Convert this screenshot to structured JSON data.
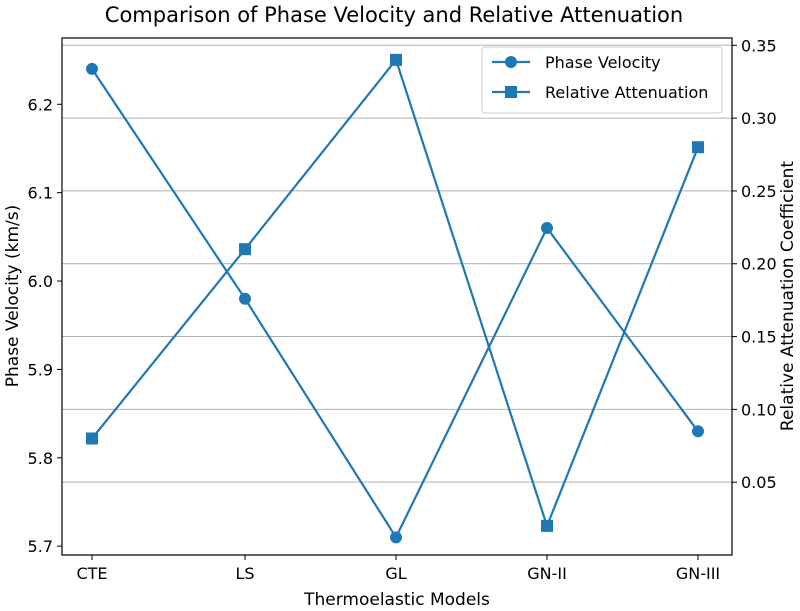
{
  "chart_data": {
    "type": "line",
    "title": "Comparison of Phase Velocity and Relative Attenuation",
    "xlabel": "Thermoelastic Models",
    "ylabel_left": "Phase Velocity (km/s)",
    "ylabel_right": "Relative Attenuation Coefficient",
    "categories": [
      "CTE",
      "LS",
      "GL",
      "GN-II",
      "GN-III"
    ],
    "ylim_left": [
      5.69,
      6.275
    ],
    "ylim_right": [
      0.0,
      0.355
    ],
    "yticks_left": [
      "5.7",
      "5.8",
      "5.9",
      "6.0",
      "6.1",
      "6.2"
    ],
    "yticks_right": [
      "0.05",
      "0.10",
      "0.15",
      "0.20",
      "0.25",
      "0.30",
      "0.35"
    ],
    "grid": "horizontal lines at right-axis ticks",
    "legend_position": "upper-right",
    "color": "#1f77b4",
    "series": [
      {
        "name": "Phase Velocity",
        "axis": "left",
        "marker": "circle",
        "values": [
          6.24,
          5.98,
          5.71,
          6.06,
          5.83
        ]
      },
      {
        "name": "Relative Attenuation",
        "axis": "right",
        "marker": "square",
        "values": [
          0.08,
          0.21,
          0.34,
          0.02,
          0.28
        ]
      }
    ]
  }
}
